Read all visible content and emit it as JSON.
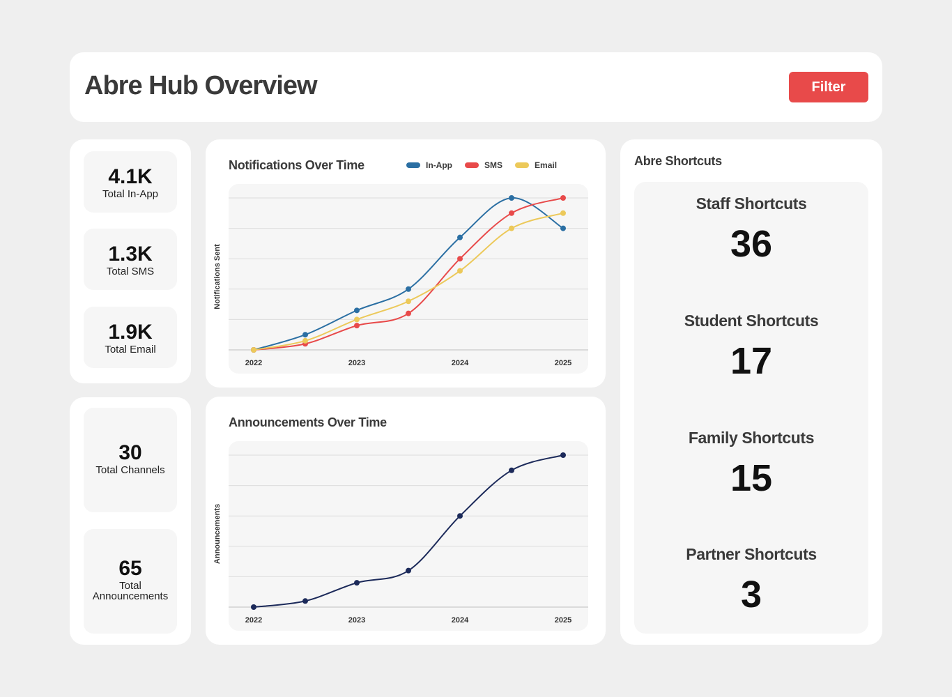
{
  "header": {
    "title": "Abre Hub Overview",
    "filter_label": "Filter"
  },
  "stats_top": [
    {
      "value": "4.1K",
      "label": "Total In-App"
    },
    {
      "value": "1.3K",
      "label": "Total SMS"
    },
    {
      "value": "1.9K",
      "label": "Total Email"
    }
  ],
  "stats_bottom": [
    {
      "value": "30",
      "label": "Total Channels"
    },
    {
      "value": "65",
      "label_line1": "Total",
      "label_line2": "Announcements"
    }
  ],
  "shortcuts": {
    "title": "Abre Shortcuts",
    "items": [
      {
        "label": "Staff Shortcuts",
        "value": "36"
      },
      {
        "label": "Student Shortcuts",
        "value": "17"
      },
      {
        "label": "Family Shortcuts",
        "value": "15"
      },
      {
        "label": "Partner Shortcuts",
        "value": "3"
      }
    ]
  },
  "chart_data": [
    {
      "type": "line",
      "title": "Notifications Over Time",
      "xlabel": "",
      "ylabel": "Notifications Sent",
      "x": [
        2022,
        2022.5,
        2023,
        2023.5,
        2024,
        2024.5,
        2025
      ],
      "x_ticks": [
        "2022",
        "2023",
        "2024",
        "2025"
      ],
      "ylim": [
        0,
        5
      ],
      "grid": true,
      "legend": "top",
      "series": [
        {
          "name": "In-App",
          "color": "#2b6fa3",
          "values": [
            0,
            0.5,
            1.3,
            2.0,
            3.7,
            5.0,
            4.0
          ]
        },
        {
          "name": "SMS",
          "color": "#e84a4a",
          "values": [
            0,
            0.2,
            0.8,
            1.2,
            3.0,
            4.5,
            5.0
          ]
        },
        {
          "name": "Email",
          "color": "#ecc95a",
          "values": [
            0,
            0.3,
            1.0,
            1.6,
            2.6,
            4.0,
            4.5
          ]
        }
      ]
    },
    {
      "type": "line",
      "title": "Announcements Over Time",
      "xlabel": "",
      "ylabel": "Announcements",
      "x": [
        2022,
        2022.5,
        2023,
        2023.5,
        2024,
        2024.5,
        2025
      ],
      "x_ticks": [
        "2022",
        "2023",
        "2024",
        "2025"
      ],
      "ylim": [
        0,
        5
      ],
      "grid": true,
      "series": [
        {
          "name": "",
          "color": "#1c2a5a",
          "values": [
            0,
            0.2,
            0.8,
            1.2,
            3.0,
            4.5,
            5.0
          ]
        }
      ]
    }
  ]
}
